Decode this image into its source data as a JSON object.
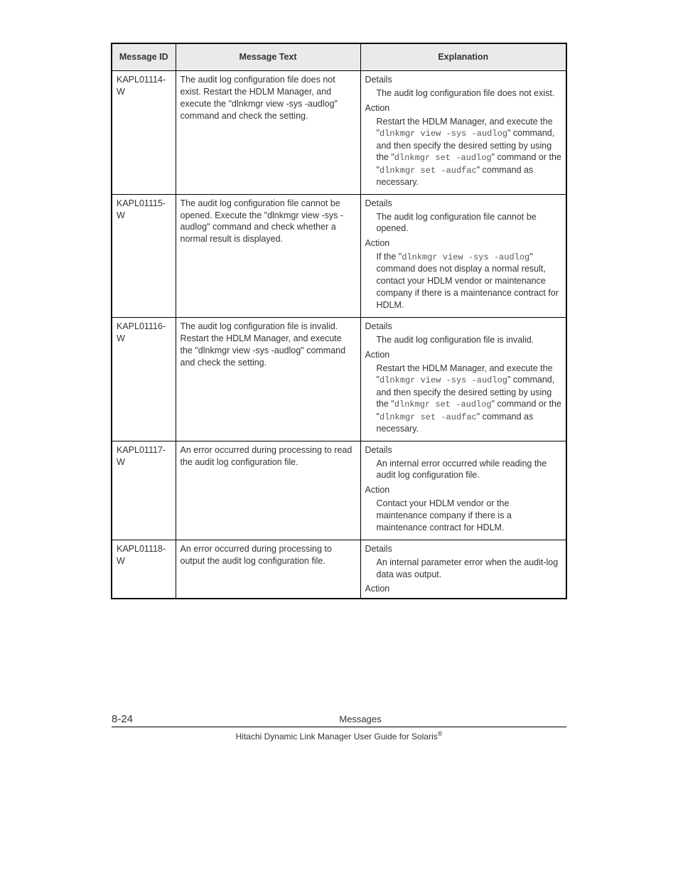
{
  "headers": {
    "id": "Message ID",
    "text": "Message Text",
    "expl": "Explanation"
  },
  "labels": {
    "details": "Details",
    "action": "Action"
  },
  "rows": [
    {
      "id": "KAPL01114-W",
      "text": "The audit log configuration file does not exist. Restart the HDLM Manager, and execute the \"dlnkmgr view -sys -audlog\" command and check the setting.",
      "details": "The audit log configuration file does not exist.",
      "action_pre": "Restart the HDLM Manager, and execute the \"",
      "action_code1": "dlnkmgr view -sys -audlog",
      "action_mid1": "\" command, and then specify the desired setting by using the \"",
      "action_code2": "dlnkmgr set -audlog",
      "action_mid2": "\" command or the \"",
      "action_code3": "dlnkmgr set -audfac",
      "action_post": "\" command as necessary."
    },
    {
      "id": "KAPL01115-W",
      "text": "The audit log configuration file cannot be opened. Execute the \"dlnkmgr view -sys -audlog\" command and check whether a normal result is displayed.",
      "details": "The audit log configuration file cannot be opened.",
      "action_pre": "If the \"",
      "action_code1": "dlnkmgr view -sys -audlog",
      "action_mid1": "\" command does not display a normal result, contact your HDLM vendor or maintenance company if there is a maintenance contract for HDLM.",
      "action_code2": "",
      "action_mid2": "",
      "action_code3": "",
      "action_post": ""
    },
    {
      "id": "KAPL01116-W",
      "text": "The audit log configuration file is invalid. Restart the HDLM Manager, and execute the \"dlnkmgr view -sys -audlog\" command and check the setting.",
      "details": "The audit log configuration file is invalid.",
      "action_pre": "Restart the HDLM Manager, and execute the \"",
      "action_code1": "dlnkmgr view -sys -audlog",
      "action_mid1": "\" command, and then specify the desired setting by using the \"",
      "action_code2": "dlnkmgr set -audlog",
      "action_mid2": "\" command or the \"",
      "action_code3": "dlnkmgr set -audfac",
      "action_post": "\" command as necessary."
    },
    {
      "id": "KAPL01117-W",
      "text": "An error occurred during processing to read the audit log configuration file.",
      "details": "An internal error occurred while reading the audit log configuration file.",
      "action_pre": "Contact your HDLM vendor or the maintenance company if there is a maintenance contract for HDLM.",
      "action_code1": "",
      "action_mid1": "",
      "action_code2": "",
      "action_mid2": "",
      "action_code3": "",
      "action_post": ""
    },
    {
      "id": "KAPL01118-W",
      "text": "An error occurred during processing to output the audit log configuration file.",
      "details": "An internal parameter error when the audit-log data was output.",
      "action_pre": "",
      "action_code1": "",
      "action_mid1": "",
      "action_code2": "",
      "action_mid2": "",
      "action_code3": "",
      "action_post": "",
      "action_only_label": true
    }
  ],
  "footer": {
    "page": "8-24",
    "section": "Messages",
    "guide": "Hitachi Dynamic Link Manager User Guide for Solaris"
  }
}
